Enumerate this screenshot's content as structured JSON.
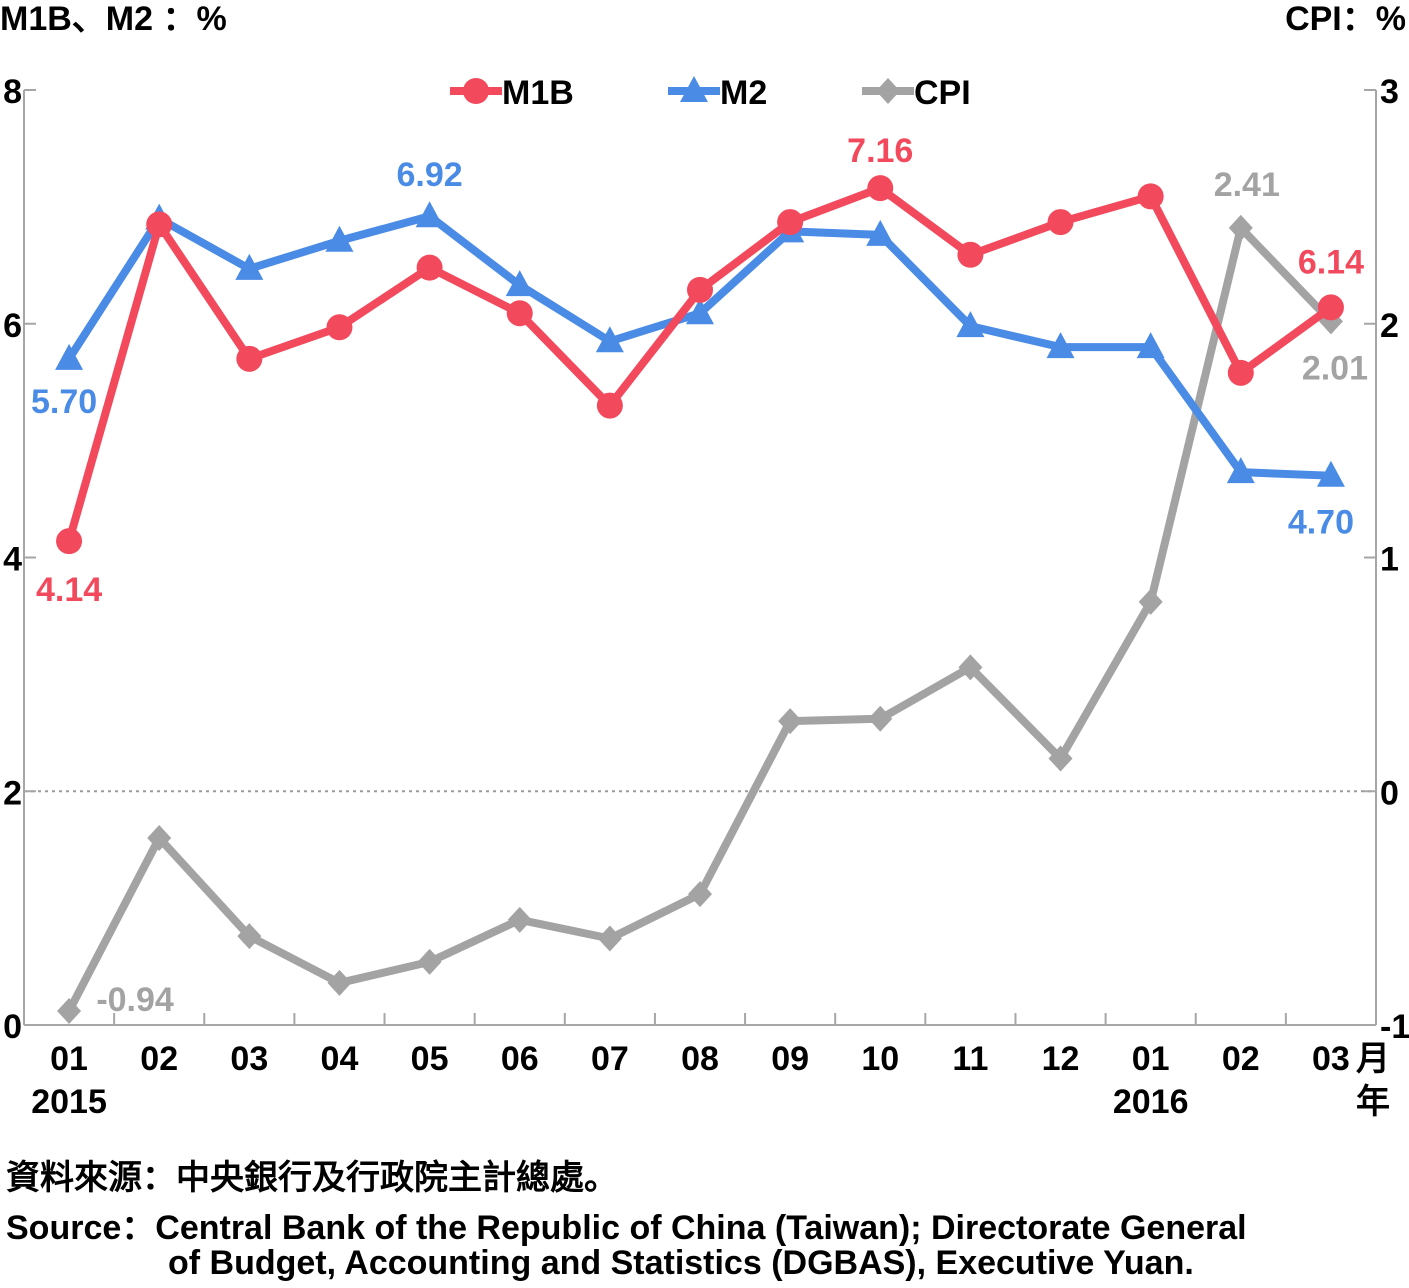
{
  "chart_data": {
    "type": "line",
    "left_axis_label": "M1B、M2 ：%",
    "right_axis_label": "CPI：%",
    "categories": [
      "01",
      "02",
      "03",
      "04",
      "05",
      "06",
      "07",
      "08",
      "09",
      "10",
      "11",
      "12",
      "01",
      "02",
      "03"
    ],
    "year_labels": [
      {
        "index": 0,
        "text": "2015"
      },
      {
        "index": 12,
        "text": "2016"
      }
    ],
    "x_unit_month": "月",
    "x_unit_year": "年",
    "y_left": {
      "min": 0,
      "max": 8,
      "ticks": [
        "0",
        "2",
        "4",
        "6",
        "8"
      ]
    },
    "y_right": {
      "min": -1,
      "max": 3,
      "ticks": [
        "-1",
        "0",
        "1",
        "2",
        "3"
      ]
    },
    "zero_line_right": 0,
    "series": [
      {
        "name": "M1B",
        "axis": "left",
        "color": "#f2495c",
        "marker": "circle",
        "values": [
          4.14,
          6.85,
          5.7,
          5.97,
          6.48,
          6.09,
          5.3,
          6.29,
          6.87,
          7.16,
          6.59,
          6.87,
          7.09,
          5.58,
          6.14
        ]
      },
      {
        "name": "M2",
        "axis": "left",
        "color": "#4a8be6",
        "marker": "triangle",
        "values": [
          5.7,
          6.9,
          6.47,
          6.71,
          6.92,
          6.33,
          5.85,
          6.09,
          6.79,
          6.76,
          5.98,
          5.8,
          5.8,
          4.73,
          4.7
        ]
      },
      {
        "name": "CPI",
        "axis": "right",
        "color": "#a3a3a3",
        "marker": "diamond",
        "values": [
          -0.94,
          -0.2,
          -0.62,
          -0.82,
          -0.73,
          -0.55,
          -0.63,
          -0.44,
          0.3,
          0.31,
          0.53,
          0.14,
          0.81,
          2.41,
          2.01
        ]
      }
    ],
    "data_labels": [
      {
        "series": 0,
        "index": 0,
        "text": "4.14"
      },
      {
        "series": 0,
        "index": 9,
        "text": "7.16"
      },
      {
        "series": 0,
        "index": 14,
        "text": "6.14"
      },
      {
        "series": 1,
        "index": 0,
        "text": "5.70"
      },
      {
        "series": 1,
        "index": 4,
        "text": "6.92"
      },
      {
        "series": 1,
        "index": 14,
        "text": "4.70"
      },
      {
        "series": 2,
        "index": 0,
        "text": "-0.94"
      },
      {
        "series": 2,
        "index": 13,
        "text": "2.41"
      },
      {
        "series": 2,
        "index": 14,
        "text": "2.01"
      }
    ],
    "legend_position": "top-center"
  },
  "source": {
    "zh": "資料來源：中央銀行及行政院主計總處。",
    "en_line1": "Source：Central Bank of the Republic of China (Taiwan); Directorate General",
    "en_line2": "of Budget, Accounting and Statistics (DGBAS), Executive Yuan."
  }
}
